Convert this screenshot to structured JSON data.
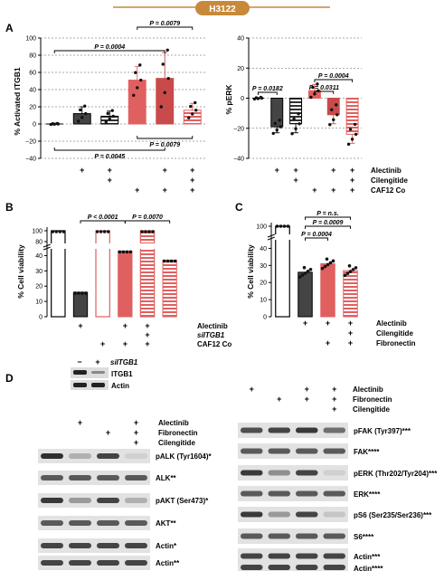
{
  "header": {
    "label": "H3122",
    "color": "#c8893a"
  },
  "colors": {
    "dark": "#444444",
    "red": "#e06060",
    "darkred": "#c94a4a",
    "pink": "#e59a9a",
    "p": "#000000"
  },
  "panelA": {
    "letter": "A",
    "left": {
      "ylabel": "% Activated ITGB1",
      "yticks": [
        "100",
        "80",
        "60",
        "40",
        "20",
        "0",
        "−20",
        "−40"
      ],
      "stats": [
        "P = 0.0079",
        "P = 0.0004",
        "P = 0.0079",
        "P = 0.0045"
      ],
      "chart_data": {
        "type": "bar",
        "categories": [
          "Control",
          "Alectinib",
          "Alectinib+Cilengitide",
          "CAF12 Co",
          "Alectinib+CAF12 Co",
          "Alectinib+Cilengitide+CAF12 Co"
        ],
        "values": [
          0,
          12,
          9,
          51,
          53,
          16
        ],
        "errors": [
          0,
          8,
          6,
          16,
          30,
          8
        ],
        "ylim": [
          -40,
          100
        ]
      }
    },
    "right": {
      "ylabel": "% pERK",
      "yticks": [
        "40",
        "20",
        "0",
        "−20",
        "−40"
      ],
      "stats": [
        "P = 0.0182",
        "P = 0.0004",
        "P = 0.0311"
      ],
      "chart_data": {
        "type": "bar",
        "categories": [
          "Control",
          "Alectinib",
          "Alectinib+Cilengitide",
          "CAF12 Co",
          "Alectinib+CAF12 Co",
          "Alectinib+Cilengitide+CAF12 Co"
        ],
        "values": [
          0,
          -19,
          -17,
          5,
          -11,
          -24
        ],
        "errors": [
          0,
          4,
          6,
          4,
          6,
          6
        ],
        "ylim": [
          -40,
          40
        ]
      }
    },
    "rows": [
      "Alectinib",
      "Cilengitide",
      "CAF12 Co"
    ]
  },
  "panelB": {
    "letter": "B",
    "ylabel": "% Cell viability",
    "yticks": [
      "100",
      "80",
      "40",
      "30",
      "20",
      "10",
      "0"
    ],
    "stats": [
      "P < 0.0001",
      "P = 0.0070"
    ],
    "rows": [
      "Alectinib",
      "siITGB1",
      "CAF12 Co"
    ],
    "blot": {
      "header": "siITGB1",
      "minus": "−",
      "plus": "+",
      "rows": [
        "ITGB1",
        "Actin"
      ]
    },
    "chart_data": {
      "type": "bar",
      "categories": [
        "Control",
        "Alectinib",
        "CAF12 Co",
        "Alectinib+CAF12 Co",
        "Alectinib+siITGB1+CAF12 Co",
        "Alectinib+siITGB1+CAF12 Co (2)"
      ],
      "values": [
        100,
        16,
        100,
        43,
        95,
        37
      ]
    }
  },
  "panelC": {
    "letter": "C",
    "ylabel": "% Cell viability",
    "yticks": [
      "100",
      "40",
      "30",
      "20",
      "10",
      "0"
    ],
    "stats": [
      "P = n.s.",
      "P = 0.0009",
      "P = 0.0004"
    ],
    "rows": [
      "Alectinib",
      "Cilengitide",
      "Fibronectin"
    ],
    "chart_data": {
      "type": "bar",
      "categories": [
        "Control",
        "Alectinib",
        "Alectinib+Fibronectin",
        "Alectinib+Cilengitide+Fibronectin"
      ],
      "values": [
        100,
        26,
        31,
        27
      ]
    }
  },
  "panelD": {
    "letter": "D",
    "left": {
      "rows": [
        "Alectinib",
        "Fibronectin",
        "Cilengitide"
      ],
      "bands": [
        "pALK (Tyr1604)*",
        "ALK**",
        "pAKT (Ser473)*",
        "AKT**",
        "Actin*",
        "Actin**"
      ]
    },
    "right": {
      "rows": [
        "Alectinib",
        "Fibronectin",
        "Cilengitide"
      ],
      "bands": [
        "pFAK (Tyr397)***",
        "FAK****",
        "pERK (Thr202/Tyr204)***",
        "ERK****",
        "pS6 (Ser235/Ser236)***",
        "S6****",
        "Actin***",
        "Actin****"
      ]
    }
  }
}
